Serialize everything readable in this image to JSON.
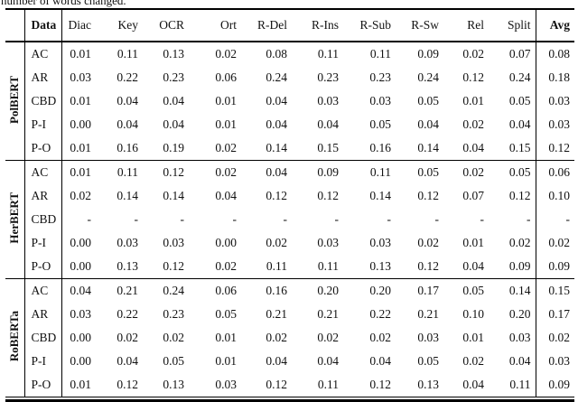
{
  "caption": "number of words changed.",
  "colors": {
    "text": "#111111",
    "rule": "#000000",
    "background": "#ffffff"
  },
  "table": {
    "header": {
      "data_label": "Data",
      "columns": [
        "Diac",
        "Key",
        "OCR",
        "Ort",
        "R-Del",
        "R-Ins",
        "R-Sub",
        "R-Sw",
        "Rel",
        "Split"
      ],
      "avg_label": "Avg"
    },
    "groups": [
      {
        "model": "PolBERT",
        "rows": [
          {
            "data": "AC",
            "values": [
              "0.01",
              "0.11",
              "0.13",
              "0.02",
              "0.08",
              "0.11",
              "0.11",
              "0.09",
              "0.02",
              "0.07"
            ],
            "avg": "0.08"
          },
          {
            "data": "AR",
            "values": [
              "0.03",
              "0.22",
              "0.23",
              "0.06",
              "0.24",
              "0.23",
              "0.23",
              "0.24",
              "0.12",
              "0.24"
            ],
            "avg": "0.18"
          },
          {
            "data": "CBD",
            "values": [
              "0.01",
              "0.04",
              "0.04",
              "0.01",
              "0.04",
              "0.03",
              "0.03",
              "0.05",
              "0.01",
              "0.05"
            ],
            "avg": "0.03"
          },
          {
            "data": "P-I",
            "values": [
              "0.00",
              "0.04",
              "0.04",
              "0.01",
              "0.04",
              "0.04",
              "0.05",
              "0.04",
              "0.02",
              "0.04"
            ],
            "avg": "0.03"
          },
          {
            "data": "P-O",
            "values": [
              "0.01",
              "0.16",
              "0.19",
              "0.02",
              "0.14",
              "0.15",
              "0.16",
              "0.14",
              "0.04",
              "0.15"
            ],
            "avg": "0.12"
          }
        ]
      },
      {
        "model": "HerBERT",
        "rows": [
          {
            "data": "AC",
            "values": [
              "0.01",
              "0.11",
              "0.12",
              "0.02",
              "0.04",
              "0.09",
              "0.11",
              "0.05",
              "0.02",
              "0.05"
            ],
            "avg": "0.06"
          },
          {
            "data": "AR",
            "values": [
              "0.02",
              "0.14",
              "0.14",
              "0.04",
              "0.12",
              "0.12",
              "0.14",
              "0.12",
              "0.07",
              "0.12"
            ],
            "avg": "0.10"
          },
          {
            "data": "CBD",
            "values": [
              "-",
              "-",
              "-",
              "-",
              "-",
              "-",
              "-",
              "-",
              "-",
              "-"
            ],
            "avg": "-"
          },
          {
            "data": "P-I",
            "values": [
              "0.00",
              "0.03",
              "0.03",
              "0.00",
              "0.02",
              "0.03",
              "0.03",
              "0.02",
              "0.01",
              "0.02"
            ],
            "avg": "0.02"
          },
          {
            "data": "P-O",
            "values": [
              "0.00",
              "0.13",
              "0.12",
              "0.02",
              "0.11",
              "0.11",
              "0.13",
              "0.12",
              "0.04",
              "0.09"
            ],
            "avg": "0.09"
          }
        ]
      },
      {
        "model": "RoBERTa",
        "rows": [
          {
            "data": "AC",
            "values": [
              "0.04",
              "0.21",
              "0.24",
              "0.06",
              "0.16",
              "0.20",
              "0.20",
              "0.17",
              "0.05",
              "0.14"
            ],
            "avg": "0.15"
          },
          {
            "data": "AR",
            "values": [
              "0.03",
              "0.22",
              "0.23",
              "0.05",
              "0.21",
              "0.21",
              "0.22",
              "0.21",
              "0.10",
              "0.20"
            ],
            "avg": "0.17"
          },
          {
            "data": "CBD",
            "values": [
              "0.00",
              "0.02",
              "0.02",
              "0.01",
              "0.02",
              "0.02",
              "0.02",
              "0.03",
              "0.01",
              "0.03"
            ],
            "avg": "0.02"
          },
          {
            "data": "P-I",
            "values": [
              "0.00",
              "0.04",
              "0.05",
              "0.01",
              "0.04",
              "0.04",
              "0.04",
              "0.05",
              "0.02",
              "0.04"
            ],
            "avg": "0.03"
          },
          {
            "data": "P-O",
            "values": [
              "0.01",
              "0.12",
              "0.13",
              "0.03",
              "0.12",
              "0.11",
              "0.12",
              "0.13",
              "0.04",
              "0.11"
            ],
            "avg": "0.09"
          }
        ]
      }
    ]
  }
}
